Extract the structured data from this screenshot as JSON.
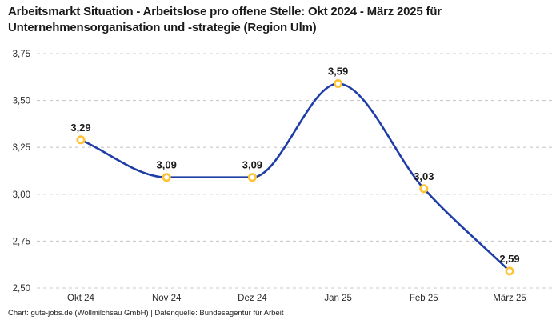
{
  "header": {
    "title": "Arbeitsmarkt Situation - Arbeitslose pro offene Stelle: Okt 2024 - März 2025 für Unternehmensorganisation und -strategie (Region Ulm)"
  },
  "footer": {
    "credit": "Chart: gute-jobs.de (Wollmilchsau GmbH) | Datenquelle: Bundesagentur für Arbeit"
  },
  "chart_data": {
    "type": "line",
    "title": "Arbeitsmarkt Situation - Arbeitslose pro offene Stelle: Okt 2024 - März 2025 für Unternehmensorganisation und -strategie (Region Ulm)",
    "categories": [
      "Okt 24",
      "Nov 24",
      "Dez 24",
      "Jan 25",
      "Feb 25",
      "März 25"
    ],
    "values": [
      3.29,
      3.09,
      3.09,
      3.59,
      3.03,
      2.59
    ],
    "point_labels": [
      "3,29",
      "3,09",
      "3,09",
      "3,59",
      "3,03",
      "2,59"
    ],
    "y_ticks": [
      3.75,
      3.5,
      3.25,
      3.0,
      2.75,
      2.5
    ],
    "y_tick_labels": [
      "3,75",
      "3,50",
      "3,25",
      "3,00",
      "2,75",
      "2,50"
    ],
    "ylim": [
      2.5,
      3.75
    ],
    "xlabel": "",
    "ylabel": "",
    "legend": "none",
    "grid": "horizontal-dashed",
    "curve": "monotone-smooth",
    "colors": {
      "line": "#1e3da6",
      "marker_ring": "#ffc233",
      "marker_fill": "#ffffff",
      "gridline": "#c9c9c9",
      "tick_text": "#2b2b2b",
      "label_text": "#1a1a1a"
    }
  }
}
